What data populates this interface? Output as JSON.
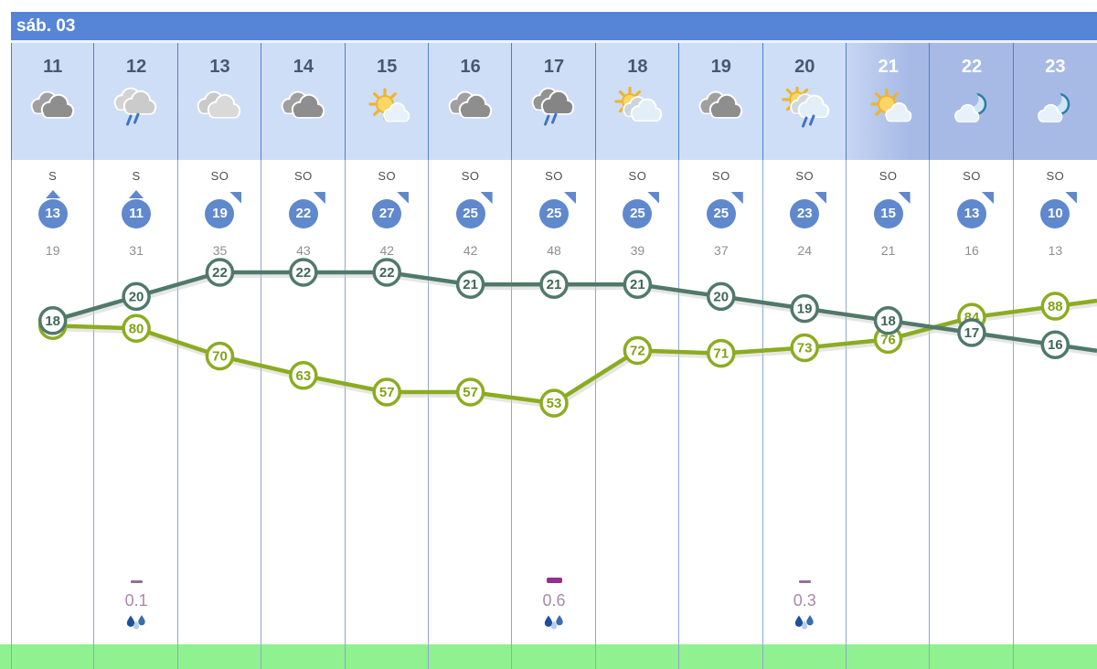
{
  "day_label": "sáb. 03",
  "colors": {
    "header_bg": "#5685d8",
    "cell_day_bg": "#cfdef7",
    "cell_night_bg": "#a7bae6",
    "separator_top": "#4d7ed2",
    "separator": "#8fa6cd",
    "hour_text": "#47586e",
    "wind_badge": "#5f88cd",
    "temperature_line": "#50796a",
    "temperature_text": "#3e6757",
    "humidity_line": "#8bac20",
    "humidity_text": "#82a317",
    "gust_text": "#8f8f8f",
    "precip_value_text": "#ab89a5",
    "precip_dash_light": "#976f93",
    "precip_dash_heavy": "#942f8c",
    "ground_green": "#90f190"
  },
  "columns": [
    {
      "hour": "11",
      "phase": "day",
      "icon": "clouds-dark",
      "wind_dir": "S",
      "wind_speed": "13",
      "gust": "19",
      "temp": 18,
      "humidity": 81,
      "precip": null
    },
    {
      "hour": "12",
      "phase": "day",
      "icon": "clouds-rain-light",
      "wind_dir": "S",
      "wind_speed": "11",
      "gust": "31",
      "temp": 20,
      "humidity": 80,
      "precip": {
        "value": "0.1",
        "heavy": false
      }
    },
    {
      "hour": "13",
      "phase": "day",
      "icon": "clouds-light",
      "wind_dir": "SO",
      "wind_speed": "19",
      "gust": "35",
      "temp": 22,
      "humidity": 70,
      "precip": null
    },
    {
      "hour": "14",
      "phase": "day",
      "icon": "clouds-dark",
      "wind_dir": "SO",
      "wind_speed": "22",
      "gust": "43",
      "temp": 22,
      "humidity": 63,
      "precip": null
    },
    {
      "hour": "15",
      "phase": "day",
      "icon": "sun-cloud",
      "wind_dir": "SO",
      "wind_speed": "27",
      "gust": "42",
      "temp": 22,
      "humidity": 57,
      "precip": null
    },
    {
      "hour": "16",
      "phase": "day",
      "icon": "clouds-dark",
      "wind_dir": "SO",
      "wind_speed": "25",
      "gust": "42",
      "temp": 21,
      "humidity": 57,
      "precip": null
    },
    {
      "hour": "17",
      "phase": "day",
      "icon": "clouds-rain-dark",
      "wind_dir": "SO",
      "wind_speed": "25",
      "gust": "48",
      "temp": 21,
      "humidity": 53,
      "precip": {
        "value": "0.6",
        "heavy": true
      }
    },
    {
      "hour": "18",
      "phase": "day",
      "icon": "sun-clouds",
      "wind_dir": "SO",
      "wind_speed": "25",
      "gust": "39",
      "temp": 21,
      "humidity": 72,
      "precip": null
    },
    {
      "hour": "19",
      "phase": "day",
      "icon": "clouds-dark",
      "wind_dir": "SO",
      "wind_speed": "25",
      "gust": "37",
      "temp": 20,
      "humidity": 71,
      "precip": null
    },
    {
      "hour": "20",
      "phase": "day",
      "icon": "sun-clouds-rain",
      "wind_dir": "SO",
      "wind_speed": "23",
      "gust": "24",
      "temp": 19,
      "humidity": 73,
      "precip": {
        "value": "0.3",
        "heavy": false
      }
    },
    {
      "hour": "21",
      "phase": "dusk",
      "icon": "sun-cloud",
      "wind_dir": "SO",
      "wind_speed": "15",
      "gust": "21",
      "temp": 18,
      "humidity": 76,
      "precip": null
    },
    {
      "hour": "22",
      "phase": "night",
      "icon": "moon-cloud",
      "wind_dir": "SO",
      "wind_speed": "13",
      "gust": "16",
      "temp": 17,
      "humidity": 84,
      "precip": null
    },
    {
      "hour": "23",
      "phase": "night",
      "icon": "moon-cloud",
      "wind_dir": "SO",
      "wind_speed": "10",
      "gust": "13",
      "temp": 16,
      "humidity": 88,
      "precip": null
    }
  ],
  "chart_data": {
    "type": "line",
    "x": [
      "11",
      "12",
      "13",
      "14",
      "15",
      "16",
      "17",
      "18",
      "19",
      "20",
      "21",
      "22",
      "23"
    ],
    "series": [
      {
        "name": "temperature",
        "color": "#50796a",
        "values": [
          18,
          20,
          22,
          22,
          22,
          21,
          21,
          21,
          20,
          19,
          18,
          17,
          16
        ]
      },
      {
        "name": "humidity",
        "color": "#8bac20",
        "values": [
          81,
          80,
          70,
          63,
          57,
          57,
          53,
          72,
          71,
          73,
          76,
          84,
          88
        ]
      }
    ],
    "point_labels": true,
    "grid": "vertical-hour-lines",
    "precipitation": {
      "hours": [
        "12",
        "17",
        "20"
      ],
      "values": [
        0.1,
        0.6,
        0.3
      ]
    }
  }
}
